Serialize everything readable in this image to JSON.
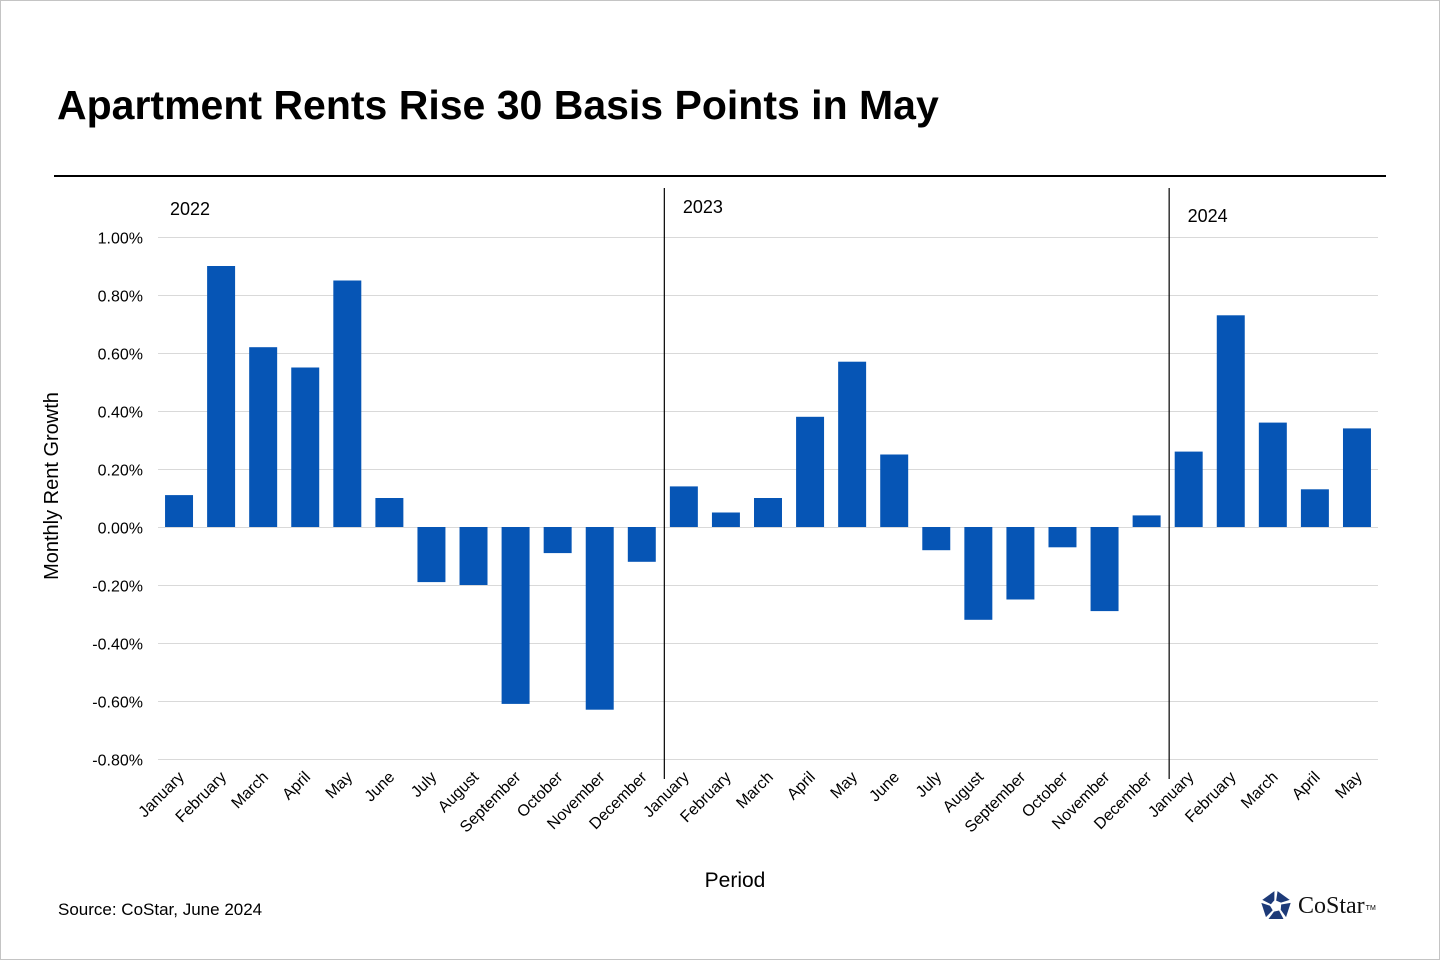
{
  "title": "Apartment Rents Rise 30 Basis Points in May",
  "source": "Source: CoStar, June 2024",
  "logo": {
    "icon": "costar-star-icon",
    "text": "CoStar",
    "tm": "TM",
    "color": "#1d3a78"
  },
  "colors": {
    "bar": "#0655b5",
    "grid": "#d9d9d9",
    "separator": "#000000"
  },
  "chart_data": {
    "type": "bar",
    "title": "Apartment Rents Rise 30 Basis Points in May",
    "xlabel": "Period",
    "ylabel": "Monthly Rent Growth",
    "ylim": [
      -0.8,
      1.0
    ],
    "yticks": [
      1.0,
      0.8,
      0.6,
      0.4,
      0.2,
      0.0,
      -0.2,
      -0.4,
      -0.6,
      -0.8
    ],
    "ytick_labels": [
      "1.00%",
      "0.80%",
      "0.60%",
      "0.40%",
      "0.20%",
      "0.00%",
      "-0.20%",
      "-0.40%",
      "-0.60%",
      "-0.80%"
    ],
    "grid": true,
    "legend": "none",
    "groups": [
      {
        "label": "2022",
        "start_index": 0
      },
      {
        "label": "2023",
        "start_index": 12
      },
      {
        "label": "2024",
        "start_index": 24
      }
    ],
    "categories": [
      "January",
      "February",
      "March",
      "April",
      "May",
      "June",
      "July",
      "August",
      "September",
      "October",
      "November",
      "December",
      "January",
      "February",
      "March",
      "April",
      "May",
      "June",
      "July",
      "August",
      "September",
      "October",
      "November",
      "December",
      "January",
      "February",
      "March",
      "April",
      "May"
    ],
    "series": [
      {
        "name": "Monthly Rent Growth (%)",
        "values": [
          0.11,
          0.9,
          0.62,
          0.55,
          0.85,
          0.1,
          -0.19,
          -0.2,
          -0.61,
          -0.09,
          -0.63,
          -0.12,
          0.14,
          0.05,
          0.1,
          0.38,
          0.57,
          0.25,
          -0.08,
          -0.32,
          -0.25,
          -0.07,
          -0.29,
          0.04,
          0.26,
          0.73,
          0.36,
          0.13,
          0.34
        ]
      }
    ]
  }
}
